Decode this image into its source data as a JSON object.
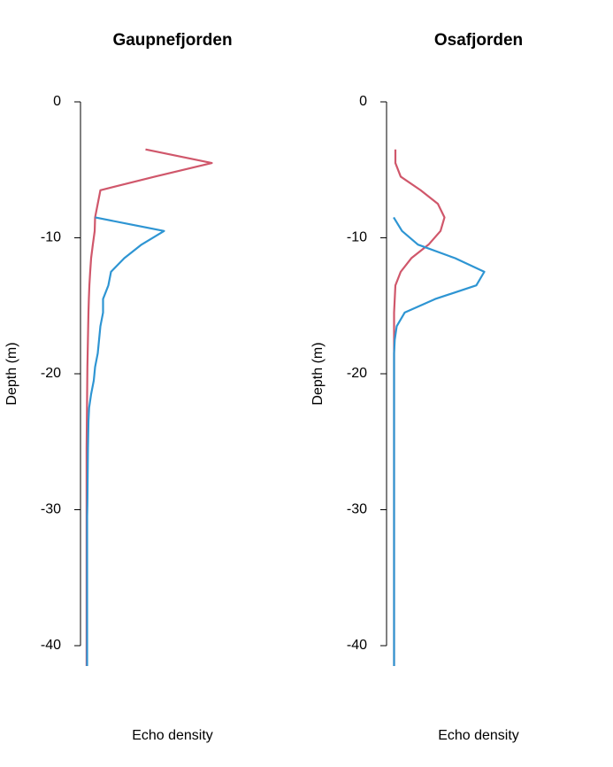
{
  "chart_data": [
    {
      "type": "line",
      "title": "Gaupnefjorden",
      "xlabel": "Echo density",
      "ylabel": "Depth (m)",
      "xlim": [
        0,
        1
      ],
      "ylim": [
        -42,
        0
      ],
      "yticks": [
        0,
        -10,
        -20,
        -30,
        -40
      ],
      "depth": [
        -3.5,
        -4.5,
        -5.5,
        -6.5,
        -7.5,
        -8.5,
        -9.5,
        -10.5,
        -11.5,
        -12.5,
        -13.5,
        -14.5,
        -15.5,
        -16.5,
        -17.5,
        -18.5,
        -19.5,
        -20.5,
        -21.5,
        -22.5,
        -23.5,
        -24.5,
        -25.5,
        -26.5,
        -27.5,
        -28.5,
        -29.5,
        -30.5,
        -31.5,
        -32.5,
        -33.5,
        -34.5,
        -35.5,
        -36.5,
        -37.5,
        -38.5,
        -39.5,
        -40.5,
        -41.5
      ],
      "series": [
        {
          "color": "#d0576b",
          "values": [
            0.45,
            0.95,
            0.52,
            0.11,
            0.09,
            0.07,
            0.067,
            0.053,
            0.04,
            0.033,
            0.027,
            0.023,
            0.02,
            0.018,
            0.016,
            0.014,
            0.012,
            0.011,
            0.01,
            0.009,
            0.008,
            0.007,
            0.006,
            0.006,
            0.006,
            0.006,
            0.006,
            0.006,
            0.006,
            0.006,
            0.006,
            0.006,
            0.006,
            0.006,
            0.006,
            0.006,
            0.006,
            0.006,
            0.006
          ]
        },
        {
          "color": "#2e95d3",
          "values": [
            null,
            null,
            null,
            null,
            null,
            0.07,
            0.59,
            0.42,
            0.29,
            0.19,
            0.17,
            0.13,
            0.13,
            0.11,
            0.1,
            0.09,
            0.07,
            0.06,
            0.04,
            0.025,
            0.02,
            0.018,
            0.016,
            0.015,
            0.014,
            0.013,
            0.012,
            0.01,
            0.01,
            0.01,
            0.01,
            0.01,
            0.01,
            0.01,
            0.01,
            0.01,
            0.01,
            0.01,
            0.01
          ]
        }
      ]
    },
    {
      "type": "line",
      "title": "Osafjorden",
      "xlabel": "Echo density",
      "ylabel": "Depth (m)",
      "xlim": [
        0,
        1
      ],
      "ylim": [
        -42,
        0
      ],
      "yticks": [
        0,
        -10,
        -20,
        -30,
        -40
      ],
      "depth": [
        -3.5,
        -4.5,
        -5.5,
        -6.5,
        -7.5,
        -8.5,
        -9.5,
        -10.5,
        -11.5,
        -12.5,
        -13.5,
        -14.5,
        -15.5,
        -16.5,
        -17.5,
        -18.5,
        -19.5,
        -20.5,
        -21.5,
        -22.5,
        -23.5,
        -24.5,
        -25.5,
        -26.5,
        -27.5,
        -28.5,
        -29.5,
        -30.5,
        -31.5,
        -32.5,
        -33.5,
        -34.5,
        -35.5,
        -36.5,
        -37.5,
        -38.5,
        -39.5,
        -40.5,
        -41.5
      ],
      "series": [
        {
          "color": "#d0576b",
          "values": [
            0.02,
            0.02,
            0.06,
            0.21,
            0.34,
            0.39,
            0.36,
            0.27,
            0.14,
            0.06,
            0.02,
            0.015,
            0.01,
            0.01,
            0.01,
            0.01,
            0.01,
            0.01,
            0.01,
            0.01,
            0.01,
            0.01,
            0.01,
            0.01,
            0.01,
            0.01,
            0.01,
            0.01,
            0.01,
            0.01,
            0.01,
            0.01,
            0.01,
            0.01,
            0.01,
            0.01,
            0.01,
            0.01,
            0.01
          ]
        },
        {
          "color": "#2e95d3",
          "values": [
            null,
            null,
            null,
            null,
            null,
            0.007,
            0.07,
            0.19,
            0.47,
            0.69,
            0.63,
            0.32,
            0.09,
            0.03,
            0.015,
            0.01,
            0.01,
            0.01,
            0.01,
            0.01,
            0.01,
            0.01,
            0.01,
            0.01,
            0.01,
            0.01,
            0.01,
            0.01,
            0.01,
            0.01,
            0.01,
            0.01,
            0.01,
            0.01,
            0.01,
            0.01,
            0.01,
            0.01,
            0.01
          ]
        }
      ]
    }
  ]
}
